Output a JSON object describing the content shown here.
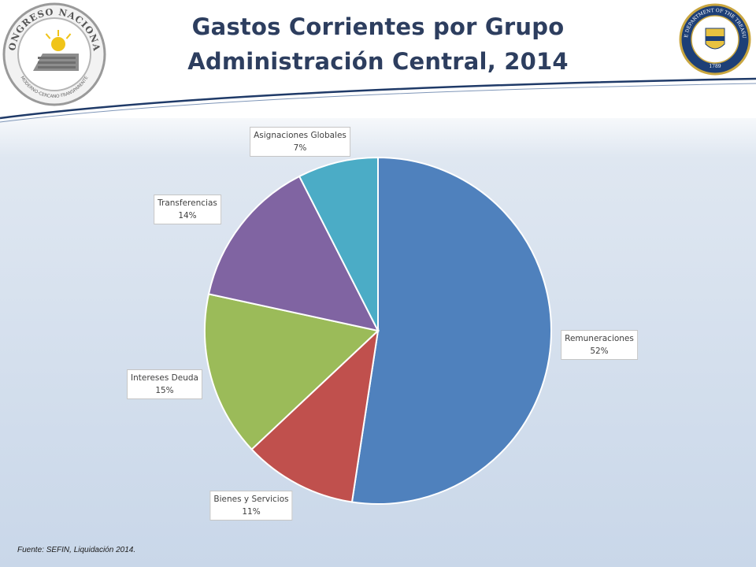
{
  "slide": {
    "title_line1": "Gastos Corrientes por Grupo",
    "title_line2": "Administración Central, 2014",
    "footnote": "Fuente: SEFIN, Liquidación 2014."
  },
  "logos": {
    "left": {
      "text_top": "CONGRESO NACIONAL",
      "text_bottom": "MODERNO-CERCANO-TRANSPARENTE",
      "icon": "congress-seal-icon"
    },
    "right": {
      "text_top": "THE DEPARTMENT OF THE TREASURY",
      "year": "1789",
      "icon": "treasury-seal-icon"
    }
  },
  "colors": {
    "title": "#2d3e5f",
    "divider": "#1f3a68",
    "label_border": "#c5c5c5"
  },
  "chart_data": {
    "type": "pie",
    "title": "Gastos Corrientes por Grupo Administración Central, 2014",
    "start_angle_deg": 0,
    "direction": "clockwise",
    "slices": [
      {
        "label": "Remuneraciones",
        "percent_label": "52%",
        "value": 52.4,
        "color": "#4f81bd"
      },
      {
        "label": "Bienes y Servicios",
        "percent_label": "11%",
        "value": 10.6,
        "color": "#c0504d"
      },
      {
        "label": "Intereses Deuda",
        "percent_label": "15%",
        "value": 15.4,
        "color": "#9bbb59"
      },
      {
        "label": "Transferencias",
        "percent_label": "14%",
        "value": 14.1,
        "color": "#8064a2"
      },
      {
        "label": "Asignaciones Globales",
        "percent_label": "7%",
        "value": 7.5,
        "color": "#4bacc6"
      }
    ]
  }
}
